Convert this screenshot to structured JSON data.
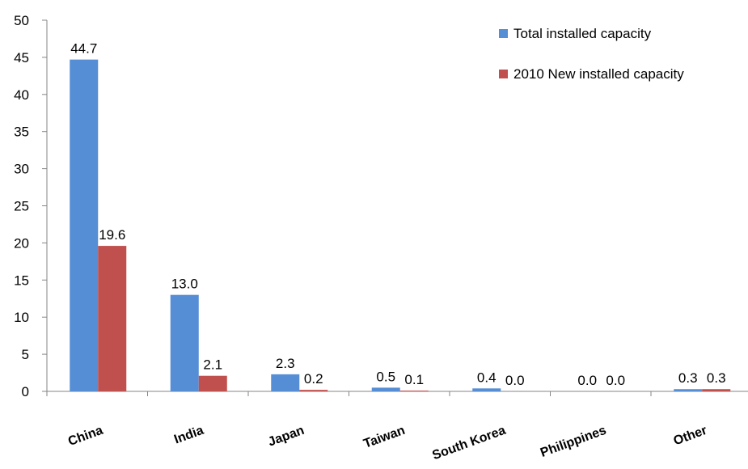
{
  "chart_data": {
    "type": "bar",
    "title": "",
    "xlabel": "",
    "ylabel": "",
    "categories": [
      "China",
      "India",
      "Japan",
      "Taiwan",
      "South Korea",
      "Philippines",
      "Other"
    ],
    "series": [
      {
        "name": "Total installed capacity",
        "color": "#558ED5",
        "values": [
          44.7,
          13.0,
          2.3,
          0.5,
          0.4,
          0.0,
          0.3
        ],
        "labels": [
          "44.7",
          "13.0",
          "2.3",
          "0.5",
          "0.4",
          "0.0",
          "0.3"
        ]
      },
      {
        "name": "2010 New installed capacity",
        "color": "#C0504D",
        "values": [
          19.6,
          2.1,
          0.2,
          0.1,
          0.0,
          0.0,
          0.3
        ],
        "labels": [
          "19.6",
          "2.1",
          "0.2",
          "0.1",
          "0.0",
          "0.0",
          "0.3"
        ]
      }
    ],
    "ylim": [
      0,
      50
    ],
    "yticks": [
      "0",
      "5",
      "10",
      "15",
      "20",
      "25",
      "30",
      "35",
      "40",
      "45",
      "50"
    ],
    "grid": false,
    "legend": "top-right"
  }
}
